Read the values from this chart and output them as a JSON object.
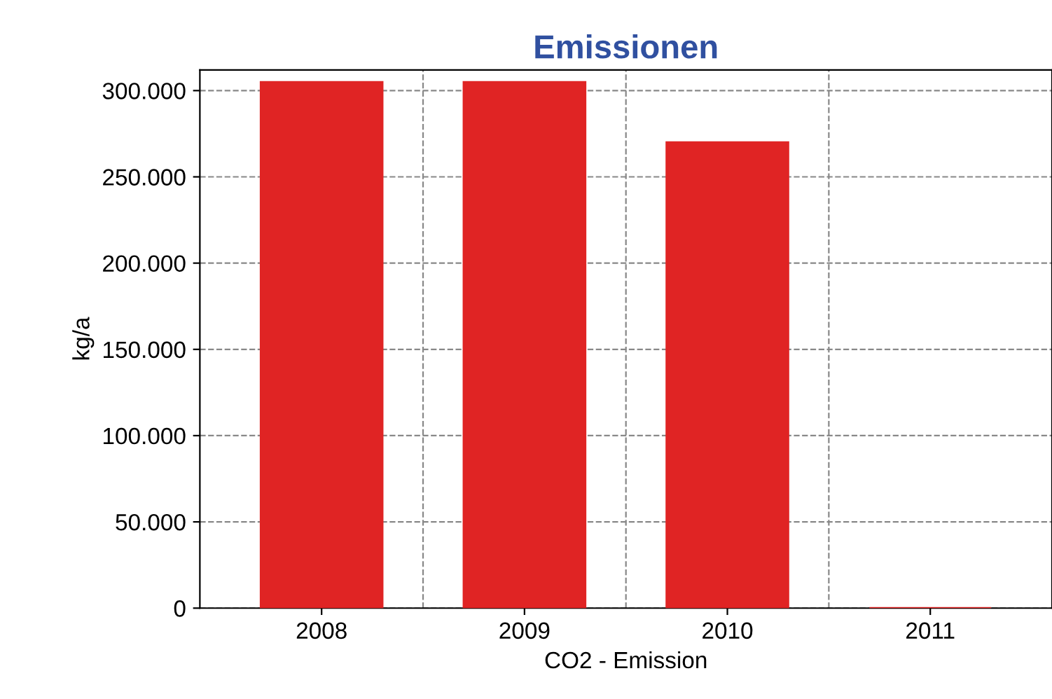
{
  "chart_data": {
    "type": "bar",
    "title": "Emissionen",
    "xlabel": "CO2 - Emission",
    "ylabel": "kg/a",
    "categories": [
      "2008",
      "2009",
      "2010",
      "2011"
    ],
    "values": [
      305000,
      305000,
      270000,
      0
    ],
    "color": "#e02424",
    "ylim": [
      0,
      312000
    ],
    "yticks": [
      {
        "value": 0,
        "label": "0"
      },
      {
        "value": 50000,
        "label": "50.000"
      },
      {
        "value": 100000,
        "label": "100.000"
      },
      {
        "value": 150000,
        "label": "150.000"
      },
      {
        "value": 200000,
        "label": "200.000"
      },
      {
        "value": 250000,
        "label": "250.000"
      },
      {
        "value": 300000,
        "label": "300.000"
      }
    ],
    "grid": true,
    "legend": false
  }
}
